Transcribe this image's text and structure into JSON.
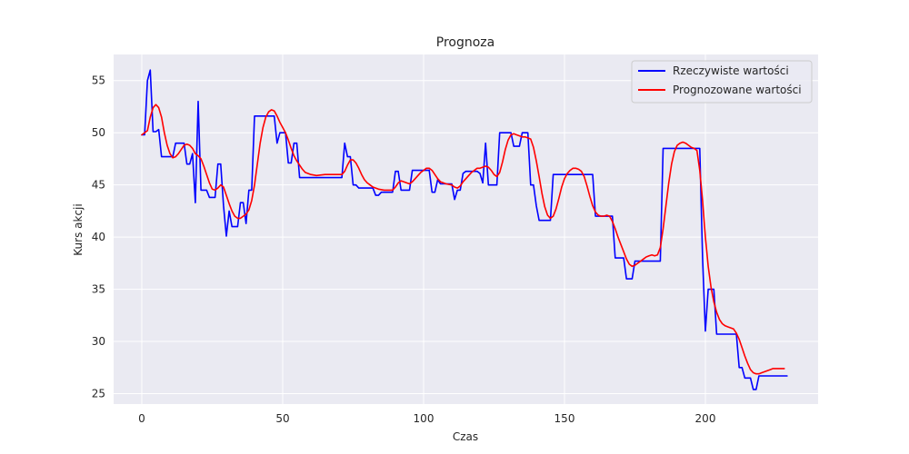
{
  "chart_data": {
    "type": "line",
    "title": "Prognoza",
    "xlabel": "Czas",
    "ylabel": "Kurs akcji",
    "xlim": [
      -10,
      240
    ],
    "ylim": [
      24,
      57.5
    ],
    "xticks": [
      0,
      50,
      100,
      150,
      200
    ],
    "yticks": [
      25,
      30,
      35,
      40,
      45,
      50,
      55
    ],
    "grid": true,
    "legend_position": "top-right",
    "background": "#eaeaf2",
    "series": [
      {
        "name": "Rzeczywiste wartości",
        "color": "#0000ff",
        "points": [
          [
            0,
            49.8
          ],
          [
            1,
            49.8
          ],
          [
            2,
            55
          ],
          [
            3,
            56
          ],
          [
            4,
            50.1
          ],
          [
            5,
            50.1
          ],
          [
            6,
            50.3
          ],
          [
            7,
            47.7
          ],
          [
            11,
            47.7
          ],
          [
            12,
            49
          ],
          [
            15,
            49
          ],
          [
            16,
            47
          ],
          [
            17,
            47
          ],
          [
            18,
            48
          ],
          [
            19,
            43.3
          ],
          [
            20,
            53
          ],
          [
            21,
            44.5
          ],
          [
            23,
            44.5
          ],
          [
            24,
            43.8
          ],
          [
            26,
            43.8
          ],
          [
            27,
            47
          ],
          [
            28,
            47
          ],
          [
            29,
            43
          ],
          [
            30,
            40.1
          ],
          [
            31,
            42.5
          ],
          [
            32,
            41
          ],
          [
            34,
            41
          ],
          [
            35,
            43.3
          ],
          [
            36,
            43.3
          ],
          [
            37,
            41.3
          ],
          [
            38,
            44.5
          ],
          [
            39,
            44.5
          ],
          [
            40,
            51.6
          ],
          [
            47,
            51.6
          ],
          [
            48,
            49
          ],
          [
            49,
            50
          ],
          [
            51,
            50
          ],
          [
            52,
            47.1
          ],
          [
            53,
            47.1
          ],
          [
            54,
            49
          ],
          [
            55,
            49
          ],
          [
            56,
            45.7
          ],
          [
            71,
            45.7
          ],
          [
            72,
            49
          ],
          [
            73,
            47.7
          ],
          [
            74,
            47.7
          ],
          [
            75,
            45
          ],
          [
            76,
            45
          ],
          [
            77,
            44.7
          ],
          [
            82,
            44.7
          ],
          [
            83,
            44
          ],
          [
            84,
            44
          ],
          [
            85,
            44.3
          ],
          [
            89,
            44.3
          ],
          [
            90,
            46.3
          ],
          [
            91,
            46.3
          ],
          [
            92,
            44.5
          ],
          [
            95,
            44.5
          ],
          [
            96,
            46.4
          ],
          [
            102,
            46.4
          ],
          [
            103,
            44.3
          ],
          [
            104,
            44.3
          ],
          [
            105,
            45.5
          ],
          [
            106,
            45.1
          ],
          [
            110,
            45.1
          ],
          [
            111,
            43.6
          ],
          [
            112,
            44.5
          ],
          [
            113,
            44.5
          ],
          [
            114,
            46.1
          ],
          [
            115,
            46.3
          ],
          [
            119,
            46.3
          ],
          [
            120,
            46.1
          ],
          [
            121,
            45.2
          ],
          [
            122,
            49
          ],
          [
            123,
            45
          ],
          [
            126,
            45
          ],
          [
            127,
            50
          ],
          [
            131,
            50
          ],
          [
            132,
            48.7
          ],
          [
            134,
            48.7
          ],
          [
            135,
            50
          ],
          [
            137,
            50
          ],
          [
            138,
            45
          ],
          [
            139,
            45
          ],
          [
            140,
            43
          ],
          [
            141,
            41.6
          ],
          [
            145,
            41.6
          ],
          [
            146,
            46
          ],
          [
            160,
            46
          ],
          [
            161,
            42
          ],
          [
            167,
            42
          ],
          [
            168,
            38
          ],
          [
            171,
            38
          ],
          [
            172,
            36
          ],
          [
            174,
            36
          ],
          [
            175,
            37.7
          ],
          [
            184,
            37.7
          ],
          [
            185,
            48.5
          ],
          [
            198,
            48.5
          ],
          [
            199,
            38
          ],
          [
            200,
            31
          ],
          [
            201,
            35
          ],
          [
            203,
            35
          ],
          [
            204,
            30.7
          ],
          [
            211,
            30.7
          ],
          [
            212,
            27.5
          ],
          [
            213,
            27.5
          ],
          [
            214,
            26.5
          ],
          [
            216,
            26.5
          ],
          [
            217,
            25.4
          ],
          [
            218,
            25.4
          ],
          [
            219,
            26.7
          ],
          [
            229,
            26.7
          ]
        ]
      },
      {
        "name": "Prognozowane wartości",
        "color": "#ff0000",
        "points": [
          [
            0,
            49.8
          ],
          [
            2,
            50.2
          ],
          [
            3,
            51.5
          ],
          [
            4,
            52.4
          ],
          [
            5,
            52.7
          ],
          [
            6,
            52.4
          ],
          [
            7,
            51.5
          ],
          [
            8,
            50
          ],
          [
            9,
            48.8
          ],
          [
            10,
            48
          ],
          [
            11,
            47.6
          ],
          [
            12,
            47.7
          ],
          [
            13,
            48
          ],
          [
            14,
            48.4
          ],
          [
            15,
            48.8
          ],
          [
            16,
            48.9
          ],
          [
            17,
            48.8
          ],
          [
            18,
            48.5
          ],
          [
            19,
            48
          ],
          [
            20,
            47.8
          ],
          [
            21,
            47.5
          ],
          [
            22,
            46.8
          ],
          [
            23,
            46
          ],
          [
            24,
            45.2
          ],
          [
            25,
            44.6
          ],
          [
            26,
            44.5
          ],
          [
            27,
            44.7
          ],
          [
            28,
            45
          ],
          [
            29,
            44.8
          ],
          [
            30,
            44
          ],
          [
            31,
            43.2
          ],
          [
            32,
            42.5
          ],
          [
            33,
            42
          ],
          [
            34,
            41.8
          ],
          [
            35,
            41.8
          ],
          [
            36,
            42
          ],
          [
            37,
            42.2
          ],
          [
            38,
            42.6
          ],
          [
            39,
            43.5
          ],
          [
            40,
            45
          ],
          [
            41,
            47
          ],
          [
            42,
            49
          ],
          [
            43,
            50.5
          ],
          [
            44,
            51.5
          ],
          [
            45,
            52
          ],
          [
            46,
            52.2
          ],
          [
            47,
            52.1
          ],
          [
            48,
            51.6
          ],
          [
            49,
            51
          ],
          [
            50,
            50.5
          ],
          [
            51,
            50
          ],
          [
            52,
            49.3
          ],
          [
            53,
            48.5
          ],
          [
            54,
            47.8
          ],
          [
            55,
            47.3
          ],
          [
            56,
            46.9
          ],
          [
            57,
            46.5
          ],
          [
            58,
            46.2
          ],
          [
            60,
            46
          ],
          [
            62,
            45.9
          ],
          [
            65,
            46
          ],
          [
            68,
            46
          ],
          [
            71,
            46
          ],
          [
            72,
            46.3
          ],
          [
            73,
            46.9
          ],
          [
            74,
            47.4
          ],
          [
            75,
            47.4
          ],
          [
            76,
            47.1
          ],
          [
            77,
            46.6
          ],
          [
            78,
            46
          ],
          [
            79,
            45.5
          ],
          [
            80,
            45.2
          ],
          [
            81,
            45
          ],
          [
            82,
            44.8
          ],
          [
            84,
            44.6
          ],
          [
            86,
            44.5
          ],
          [
            89,
            44.5
          ],
          [
            90,
            44.8
          ],
          [
            91,
            45.2
          ],
          [
            92,
            45.4
          ],
          [
            93,
            45.3
          ],
          [
            94,
            45.2
          ],
          [
            95,
            45.1
          ],
          [
            96,
            45.3
          ],
          [
            97,
            45.6
          ],
          [
            98,
            45.9
          ],
          [
            99,
            46.2
          ],
          [
            100,
            46.4
          ],
          [
            101,
            46.6
          ],
          [
            102,
            46.6
          ],
          [
            103,
            46.4
          ],
          [
            104,
            46
          ],
          [
            105,
            45.6
          ],
          [
            106,
            45.3
          ],
          [
            108,
            45.1
          ],
          [
            110,
            45
          ],
          [
            111,
            44.8
          ],
          [
            112,
            44.7
          ],
          [
            113,
            44.9
          ],
          [
            114,
            45.3
          ],
          [
            115,
            45.6
          ],
          [
            116,
            45.9
          ],
          [
            117,
            46.2
          ],
          [
            118,
            46.4
          ],
          [
            119,
            46.6
          ],
          [
            120,
            46.6
          ],
          [
            121,
            46.7
          ],
          [
            122,
            46.8
          ],
          [
            123,
            46.7
          ],
          [
            124,
            46.4
          ],
          [
            125,
            46
          ],
          [
            126,
            45.8
          ],
          [
            127,
            46.2
          ],
          [
            128,
            47.2
          ],
          [
            129,
            48.4
          ],
          [
            130,
            49.3
          ],
          [
            131,
            49.8
          ],
          [
            132,
            49.9
          ],
          [
            133,
            49.8
          ],
          [
            134,
            49.7
          ],
          [
            135,
            49.6
          ],
          [
            136,
            49.6
          ],
          [
            137,
            49.5
          ],
          [
            138,
            49.4
          ],
          [
            139,
            48.6
          ],
          [
            140,
            47.3
          ],
          [
            141,
            45.8
          ],
          [
            142,
            44.2
          ],
          [
            143,
            42.9
          ],
          [
            144,
            42.1
          ],
          [
            145,
            41.8
          ],
          [
            146,
            42
          ],
          [
            147,
            42.7
          ],
          [
            148,
            43.7
          ],
          [
            149,
            44.8
          ],
          [
            150,
            45.6
          ],
          [
            151,
            46.1
          ],
          [
            152,
            46.4
          ],
          [
            153,
            46.6
          ],
          [
            154,
            46.6
          ],
          [
            155,
            46.5
          ],
          [
            156,
            46.3
          ],
          [
            157,
            45.8
          ],
          [
            158,
            44.9
          ],
          [
            159,
            43.9
          ],
          [
            160,
            43
          ],
          [
            161,
            42.4
          ],
          [
            162,
            42.1
          ],
          [
            163,
            42
          ],
          [
            164,
            42
          ],
          [
            165,
            42.1
          ],
          [
            166,
            42
          ],
          [
            167,
            41.5
          ],
          [
            168,
            40.8
          ],
          [
            169,
            40
          ],
          [
            170,
            39.3
          ],
          [
            171,
            38.6
          ],
          [
            172,
            37.9
          ],
          [
            173,
            37.4
          ],
          [
            174,
            37.2
          ],
          [
            175,
            37.3
          ],
          [
            176,
            37.5
          ],
          [
            177,
            37.7
          ],
          [
            178,
            37.9
          ],
          [
            179,
            38.1
          ],
          [
            180,
            38.2
          ],
          [
            181,
            38.3
          ],
          [
            182,
            38.2
          ],
          [
            183,
            38.3
          ],
          [
            184,
            39
          ],
          [
            185,
            40.8
          ],
          [
            186,
            43
          ],
          [
            187,
            45.2
          ],
          [
            188,
            47
          ],
          [
            189,
            48.2
          ],
          [
            190,
            48.8
          ],
          [
            191,
            49
          ],
          [
            192,
            49.1
          ],
          [
            193,
            49
          ],
          [
            194,
            48.8
          ],
          [
            195,
            48.6
          ],
          [
            196,
            48.5
          ],
          [
            197,
            48.3
          ],
          [
            198,
            46.4
          ],
          [
            199,
            43.5
          ],
          [
            200,
            40
          ],
          [
            201,
            37.2
          ],
          [
            202,
            35.2
          ],
          [
            203,
            33.8
          ],
          [
            204,
            32.8
          ],
          [
            205,
            32.1
          ],
          [
            206,
            31.7
          ],
          [
            207,
            31.5
          ],
          [
            208,
            31.4
          ],
          [
            209,
            31.3
          ],
          [
            210,
            31.2
          ],
          [
            211,
            30.8
          ],
          [
            212,
            30.2
          ],
          [
            213,
            29.4
          ],
          [
            214,
            28.6
          ],
          [
            215,
            27.9
          ],
          [
            216,
            27.3
          ],
          [
            217,
            27
          ],
          [
            218,
            26.9
          ],
          [
            219,
            26.9
          ],
          [
            220,
            27
          ],
          [
            221,
            27.1
          ],
          [
            222,
            27.2
          ],
          [
            223,
            27.3
          ],
          [
            224,
            27.4
          ],
          [
            225,
            27.4
          ],
          [
            226,
            27.4
          ],
          [
            228,
            27.4
          ]
        ]
      }
    ]
  }
}
